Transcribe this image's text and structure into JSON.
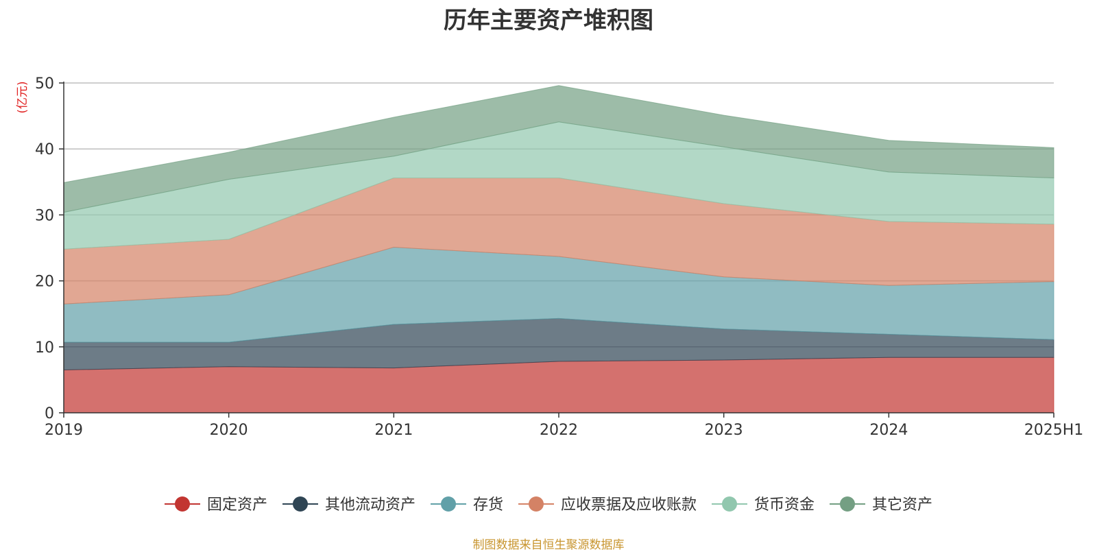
{
  "chart_data": {
    "type": "area",
    "stacked": true,
    "title": "历年主要资产堆积图",
    "ylabel": "亿元",
    "ylim": [
      0,
      50
    ],
    "yticks": [
      0,
      10,
      20,
      30,
      40,
      50
    ],
    "categories": [
      "2019",
      "2020",
      "2021",
      "2022",
      "2023",
      "2024",
      "2025H1"
    ],
    "grid": true,
    "legend_position": "bottom",
    "series": [
      {
        "name": "固定资产",
        "color": "#c23531",
        "values": [
          6.5,
          7.0,
          6.8,
          7.8,
          8.0,
          8.4,
          8.4
        ]
      },
      {
        "name": "其他流动资产",
        "color": "#2f4554",
        "values": [
          4.2,
          3.7,
          6.6,
          6.5,
          4.7,
          3.5,
          2.7
        ]
      },
      {
        "name": "存货",
        "color": "#61a0a8",
        "values": [
          5.8,
          7.2,
          11.7,
          9.4,
          7.9,
          7.4,
          8.8
        ]
      },
      {
        "name": "应收票据及应收账款",
        "color": "#d48265",
        "values": [
          8.3,
          8.4,
          10.5,
          11.9,
          11.1,
          9.7,
          8.7
        ]
      },
      {
        "name": "货币资金",
        "color": "#91c7ae",
        "values": [
          5.6,
          9.1,
          3.3,
          8.5,
          8.6,
          7.5,
          7.0
        ]
      },
      {
        "name": "其它资产",
        "color": "#749f83",
        "values": [
          4.5,
          4.1,
          5.9,
          5.5,
          4.8,
          4.8,
          4.6
        ]
      }
    ]
  },
  "source": "制图数据来自恒生聚源数据库"
}
